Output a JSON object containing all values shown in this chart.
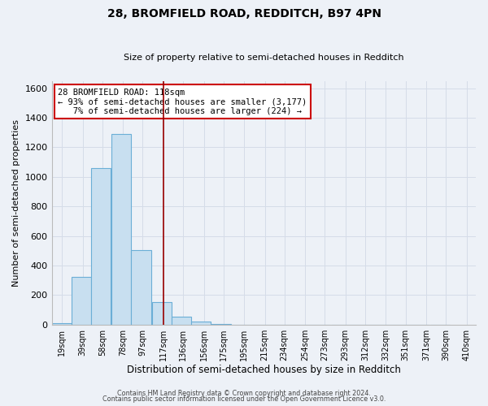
{
  "title": "28, BROMFIELD ROAD, REDDITCH, B97 4PN",
  "subtitle": "Size of property relative to semi-detached houses in Redditch",
  "xlabel": "Distribution of semi-detached houses by size in Redditch",
  "ylabel": "Number of semi-detached properties",
  "bar_values": [
    10,
    325,
    1060,
    1290,
    505,
    150,
    55,
    20,
    5,
    0,
    0,
    0,
    0,
    0,
    0,
    0,
    0,
    0,
    0,
    0
  ],
  "bin_left_edges": [
    9,
    28,
    47,
    67,
    86,
    106,
    125,
    144,
    163,
    182,
    202,
    221,
    240,
    259,
    279,
    298,
    317,
    336,
    355,
    375
  ],
  "bin_width": 19,
  "tick_positions": [
    19,
    39,
    58,
    78,
    97,
    117,
    136,
    156,
    175,
    195,
    215,
    234,
    254,
    273,
    293,
    312,
    332,
    351,
    371,
    390,
    410
  ],
  "tick_labels": [
    "19sqm",
    "39sqm",
    "58sqm",
    "78sqm",
    "97sqm",
    "117sqm",
    "136sqm",
    "156sqm",
    "175sqm",
    "195sqm",
    "215sqm",
    "234sqm",
    "254sqm",
    "273sqm",
    "293sqm",
    "312sqm",
    "332sqm",
    "351sqm",
    "371sqm",
    "390sqm",
    "410sqm"
  ],
  "property_line_x": 117,
  "xlim": [
    9,
    419
  ],
  "ylim": [
    0,
    1650
  ],
  "bar_color": "#c8dff0",
  "bar_edge_color": "#6baed6",
  "line_color": "#990000",
  "annotation_line1": "28 BROMFIELD ROAD: 118sqm",
  "annotation_line2": "← 93% of semi-detached houses are smaller (3,177)",
  "annotation_line3": "   7% of semi-detached houses are larger (224) →",
  "annotation_box_edge_color": "#cc0000",
  "footer_line1": "Contains HM Land Registry data © Crown copyright and database right 2024.",
  "footer_line2": "Contains public sector information licensed under the Open Government Licence v3.0.",
  "grid_color": "#d5dce8",
  "background_color": "#edf1f7",
  "title_fontsize": 10,
  "subtitle_fontsize": 8,
  "ylabel_fontsize": 8,
  "xlabel_fontsize": 8.5
}
